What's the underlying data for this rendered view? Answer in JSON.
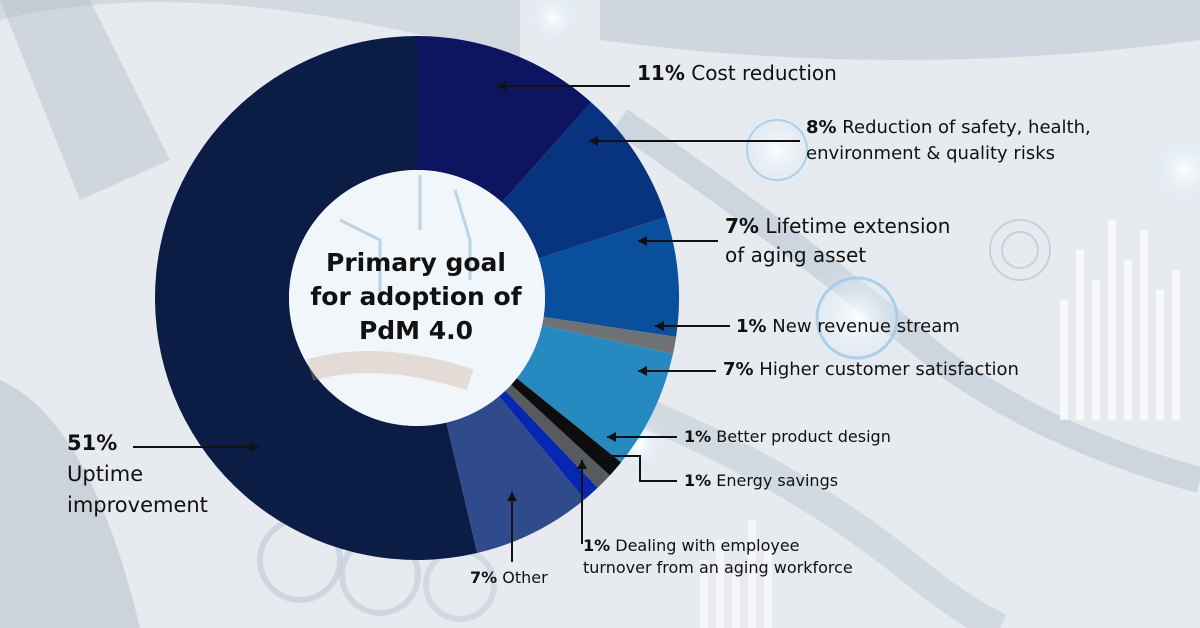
{
  "center_title": [
    "Primary goal",
    "for adoption of",
    "PdM 4.0"
  ],
  "colors": {
    "uptime": "#0b1c45",
    "cost": "#0d1560",
    "safety": "#07337f",
    "lifetime": "#0a4f9c",
    "revenue": "#6f7275",
    "satisfaction": "#2689bf",
    "product": "#0d0d0d",
    "energy": "#585b5e",
    "turnover": "#0726b2",
    "other": "#2f4b8c"
  },
  "chart_data": {
    "type": "pie",
    "donut": true,
    "title": "Primary goal for adoption of PdM 4.0",
    "unit": "%",
    "slices": [
      {
        "id": "cost",
        "value": 11,
        "pct": "11%",
        "label": [
          "Cost reduction"
        ]
      },
      {
        "id": "safety",
        "value": 8,
        "pct": "8%",
        "label": [
          "Reduction of safety, health,",
          "environment & quality risks"
        ]
      },
      {
        "id": "lifetime",
        "value": 7,
        "pct": "7%",
        "label": [
          "Lifetime extension",
          "of aging asset"
        ]
      },
      {
        "id": "revenue",
        "value": 1,
        "pct": "1%",
        "label": [
          "New revenue stream"
        ]
      },
      {
        "id": "satisfaction",
        "value": 7,
        "pct": "7%",
        "label": [
          "Higher customer satisfaction"
        ]
      },
      {
        "id": "product",
        "value": 1,
        "pct": "1%",
        "label": [
          "Better product design"
        ]
      },
      {
        "id": "energy",
        "value": 1,
        "pct": "1%",
        "label": [
          "Energy savings"
        ]
      },
      {
        "id": "turnover",
        "value": 1,
        "pct": "1%",
        "label": [
          "Dealing with employee",
          "turnover from an aging workforce"
        ]
      },
      {
        "id": "other",
        "value": 7,
        "pct": "7%",
        "label": [
          "Other"
        ]
      },
      {
        "id": "uptime",
        "value": 51,
        "pct": "51%",
        "label": [
          "Uptime",
          "improvement"
        ]
      }
    ]
  }
}
